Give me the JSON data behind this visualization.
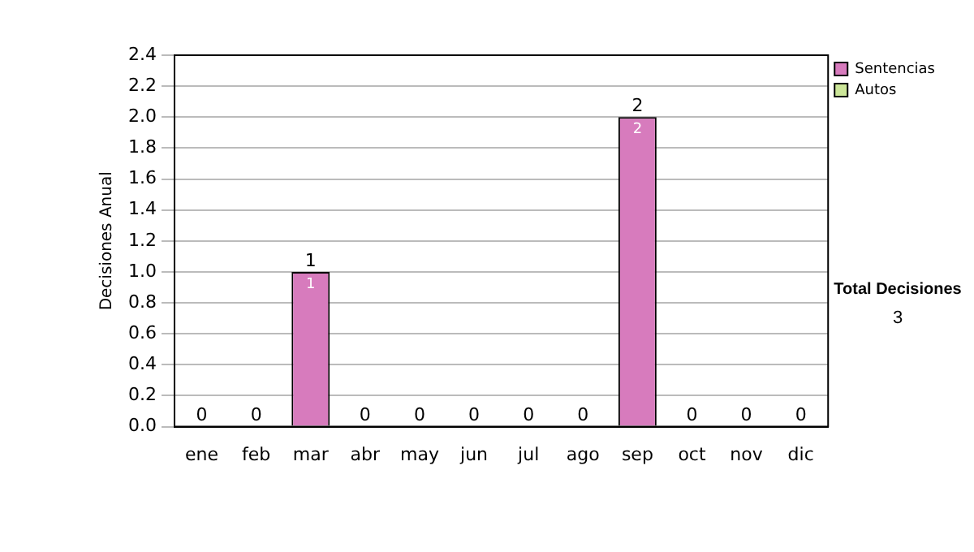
{
  "chart_data": {
    "type": "bar",
    "ylabel": "Decisiones Anual",
    "categories": [
      "ene",
      "feb",
      "mar",
      "abr",
      "may",
      "jun",
      "jul",
      "ago",
      "sep",
      "oct",
      "nov",
      "dic"
    ],
    "series": [
      {
        "name": "Sentencias",
        "color": "#d77bbd",
        "values": [
          0,
          0,
          1,
          0,
          0,
          0,
          0,
          0,
          2,
          0,
          0,
          0
        ],
        "value_labels": [
          null,
          null,
          "1",
          null,
          null,
          null,
          null,
          null,
          "2",
          null,
          null,
          null
        ]
      },
      {
        "name": "Autos",
        "color": "#cce699",
        "values": [
          0,
          0,
          0,
          0,
          0,
          0,
          0,
          0,
          0,
          0,
          0,
          0
        ]
      }
    ],
    "stacked": true,
    "totals": [
      "0",
      "0",
      "1",
      "0",
      "0",
      "0",
      "0",
      "0",
      "2",
      "0",
      "0",
      "0"
    ],
    "ylim": [
      0,
      2.4
    ],
    "yticks": [
      {
        "value": 0,
        "label": "0.0"
      },
      0.2,
      0.4,
      0.6,
      0.8,
      {
        "value": 1,
        "label": "1.0"
      },
      1.2,
      1.4,
      1.6,
      1.8,
      {
        "value": 2,
        "label": "2.0"
      },
      2.2,
      2.4
    ],
    "grid": "y",
    "legend": "right",
    "annotations": [
      "Total Decisiones",
      "3"
    ]
  }
}
